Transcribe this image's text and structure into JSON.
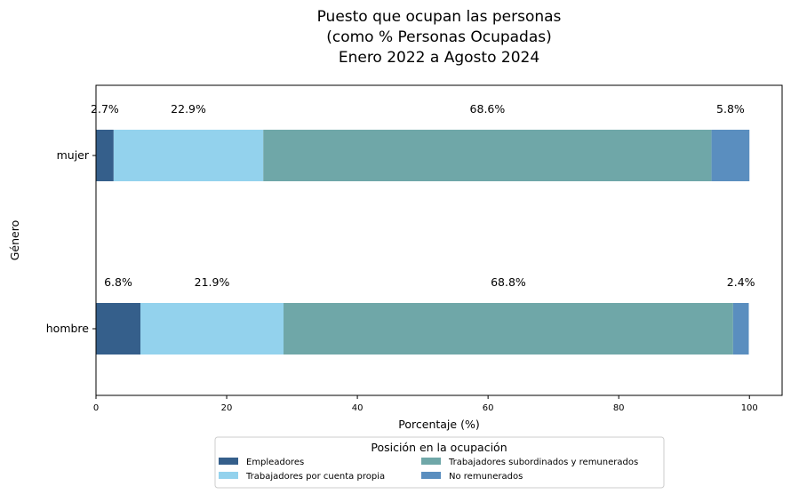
{
  "chart_data": {
    "type": "bar",
    "orientation": "horizontal",
    "stacked": true,
    "title_lines": [
      "Puesto que ocupan las personas",
      "(como % Personas Ocupadas)",
      "Enero 2022 a Agosto 2024"
    ],
    "xlabel": "Porcentaje (%)",
    "ylabel": "Género",
    "xlim": [
      0,
      105
    ],
    "xticks": [
      0,
      20,
      40,
      60,
      80,
      100
    ],
    "categories": [
      "mujer",
      "hombre"
    ],
    "series": [
      {
        "name": "Empleadores",
        "color": "#355f8b",
        "values": [
          2.7,
          6.8
        ],
        "labels": [
          "2.7%",
          "6.8%"
        ]
      },
      {
        "name": "Trabajadores por cuenta propia",
        "color": "#93d2ed",
        "values": [
          22.9,
          21.9
        ],
        "labels": [
          "22.9%",
          "21.9%"
        ]
      },
      {
        "name": "Trabajadores subordinados y remunerados",
        "color": "#6fa7a8",
        "values": [
          68.6,
          68.8
        ],
        "labels": [
          "68.6%",
          "68.8%"
        ]
      },
      {
        "name": "No remunerados",
        "color": "#5a8ebf",
        "values": [
          5.8,
          2.4
        ],
        "labels": [
          "5.8%",
          "2.4%"
        ]
      }
    ],
    "legend": {
      "title": "Posición en la ocupación",
      "placement": "bottom-center",
      "columns": 2
    },
    "grid": false
  }
}
